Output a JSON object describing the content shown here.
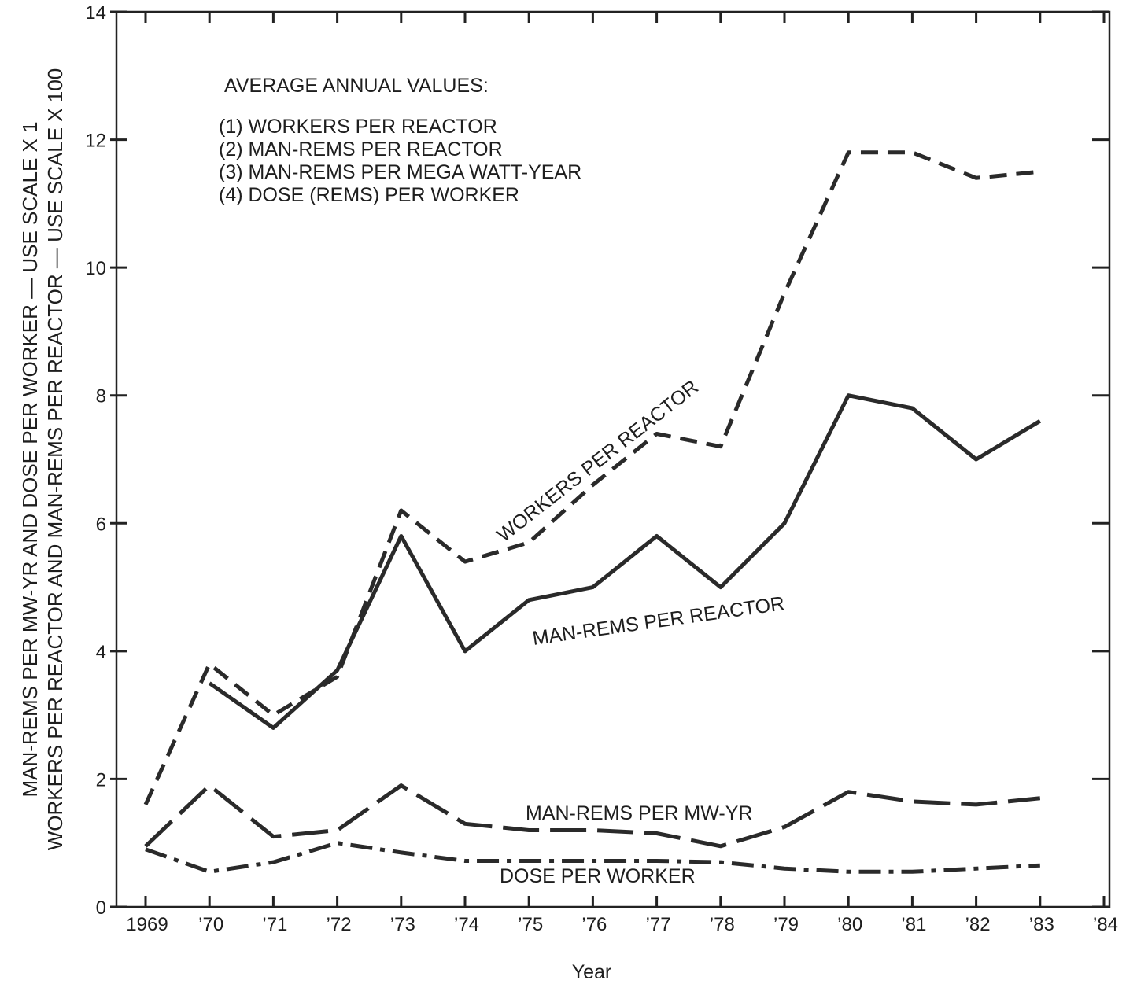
{
  "chart_data": {
    "type": "line",
    "xlabel": "Year",
    "ylabel_lines": [
      "MAN-REMS PER MW-YR AND DOSE PER WORKER — USE SCALE X 1",
      "WORKERS PER REACTOR AND MAN-REMS PER REACTOR — USE SCALE X 100"
    ],
    "legend": {
      "title": "AVERAGE ANNUAL VALUES:",
      "entries": [
        "(1) WORKERS PER REACTOR",
        "(2) MAN-REMS PER REACTOR",
        "(3) MAN-REMS PER MEGA WATT-YEAR",
        "(4) DOSE (REMS) PER WORKER"
      ]
    },
    "x_ticks": [
      "1969",
      "’70",
      "’71",
      "’72",
      "’73",
      "’74",
      "’75",
      "’76",
      "’77",
      "’78",
      "’79",
      "’80",
      "’81",
      "’82",
      "’83",
      "’84"
    ],
    "xlim": [
      1969,
      1984
    ],
    "ylim": [
      0,
      14
    ],
    "y_ticks": [
      0,
      2,
      4,
      6,
      8,
      10,
      12,
      14
    ],
    "series": [
      {
        "name": "WORKERS PER REACTOR",
        "style": "short-dash",
        "points": [
          [
            1969,
            1.6
          ],
          [
            1970,
            3.8
          ],
          [
            1971,
            3.0
          ],
          [
            1972,
            3.6
          ],
          [
            1973,
            6.2
          ],
          [
            1974,
            5.4
          ],
          [
            1975,
            5.7
          ],
          [
            1976,
            6.6
          ],
          [
            1977,
            7.4
          ],
          [
            1978,
            7.2
          ],
          [
            1979,
            9.6
          ],
          [
            1980,
            11.8
          ],
          [
            1981,
            11.8
          ],
          [
            1982,
            11.4
          ],
          [
            1983,
            11.5
          ]
        ]
      },
      {
        "name": "MAN-REMS PER REACTOR",
        "style": "solid",
        "points": [
          [
            1970,
            3.5
          ],
          [
            1971,
            2.8
          ],
          [
            1972,
            3.7
          ],
          [
            1973,
            5.8
          ],
          [
            1974,
            4.0
          ],
          [
            1975,
            4.8
          ],
          [
            1976,
            5.0
          ],
          [
            1977,
            5.8
          ],
          [
            1978,
            5.0
          ],
          [
            1979,
            6.0
          ],
          [
            1980,
            8.0
          ],
          [
            1981,
            7.8
          ],
          [
            1982,
            7.0
          ],
          [
            1983,
            7.6
          ]
        ]
      },
      {
        "name": "MAN-REMS PER MW-YR",
        "style": "long-dash",
        "points": [
          [
            1969,
            0.95
          ],
          [
            1970,
            1.9
          ],
          [
            1971,
            1.1
          ],
          [
            1972,
            1.2
          ],
          [
            1973,
            1.9
          ],
          [
            1974,
            1.3
          ],
          [
            1975,
            1.2
          ],
          [
            1976,
            1.2
          ],
          [
            1977,
            1.15
          ],
          [
            1978,
            0.95
          ],
          [
            1979,
            1.25
          ],
          [
            1980,
            1.8
          ],
          [
            1981,
            1.65
          ],
          [
            1982,
            1.6
          ],
          [
            1983,
            1.7
          ]
        ]
      },
      {
        "name": "DOSE PER WORKER",
        "style": "dash-dot",
        "points": [
          [
            1969,
            0.9
          ],
          [
            1970,
            0.55
          ],
          [
            1971,
            0.7
          ],
          [
            1972,
            1.0
          ],
          [
            1973,
            0.85
          ],
          [
            1974,
            0.72
          ],
          [
            1975,
            0.72
          ],
          [
            1976,
            0.72
          ],
          [
            1977,
            0.72
          ],
          [
            1978,
            0.7
          ],
          [
            1979,
            0.6
          ],
          [
            1980,
            0.55
          ],
          [
            1981,
            0.55
          ],
          [
            1982,
            0.6
          ],
          [
            1983,
            0.65
          ]
        ]
      }
    ],
    "grid": false,
    "legend_position": "top-left"
  }
}
